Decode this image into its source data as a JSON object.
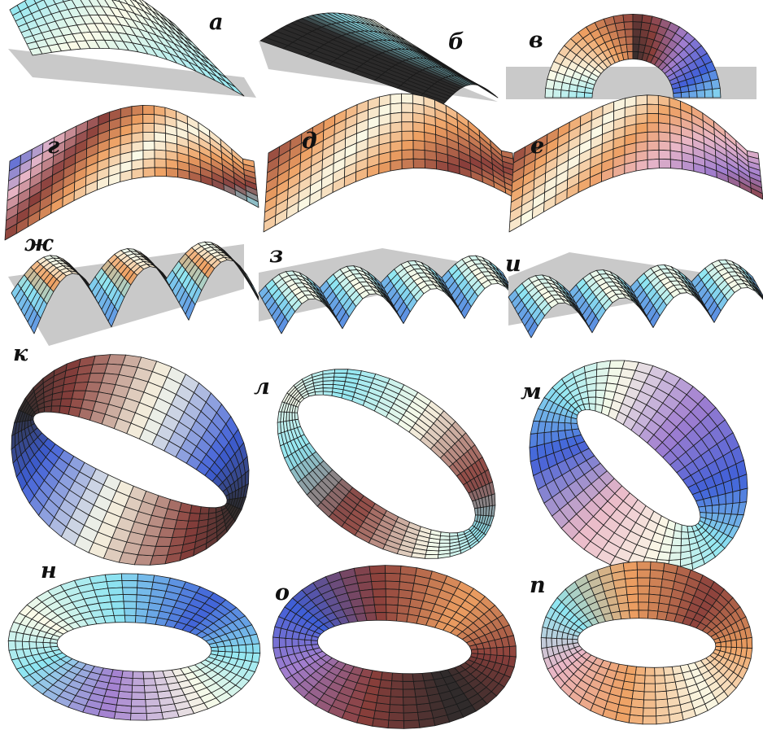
{
  "labels": [
    "а",
    "б",
    "в",
    "г",
    "д",
    "е",
    "ж",
    "з",
    "и",
    "к",
    "л",
    "м",
    "н",
    "о",
    "п"
  ],
  "colors": {
    "cyan": "#8fe6f2",
    "light": "#fbfbe8",
    "orange": "#eea062",
    "brown": "#8a3f3b",
    "dark": "#2b2a2a",
    "purple": "#a27fd0",
    "blue": "#3f5fd8",
    "pink": "#e9b7c7",
    "plane": "#c9c9c9",
    "mesh": "#1a1a1a"
  }
}
